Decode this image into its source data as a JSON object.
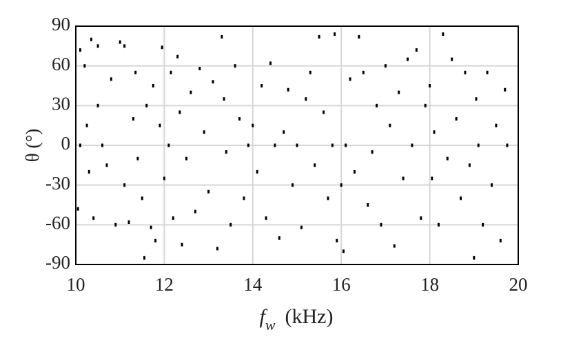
{
  "chart_data": {
    "type": "scatter",
    "ylabel": "θ (°)",
    "xlabel": {
      "main": "f",
      "sub": "w",
      "unit": "(kHz)"
    },
    "xlim": [
      10,
      20
    ],
    "xticks": [
      10,
      12,
      14,
      16,
      18,
      20
    ],
    "ylim": [
      -90,
      90
    ],
    "yticks": [
      -90,
      -60,
      -30,
      0,
      30,
      60,
      90
    ],
    "grid": true,
    "color": "#000000",
    "x": [
      10.05,
      10.1,
      10.1,
      10.2,
      10.25,
      10.3,
      10.35,
      10.4,
      10.5,
      10.5,
      10.6,
      10.7,
      10.8,
      10.9,
      11.0,
      11.1,
      11.1,
      11.2,
      11.3,
      11.35,
      11.4,
      11.5,
      11.55,
      11.6,
      11.7,
      11.75,
      11.8,
      11.9,
      11.95,
      12.0,
      12.1,
      12.15,
      12.2,
      12.3,
      12.35,
      12.4,
      12.5,
      12.6,
      12.7,
      12.8,
      12.9,
      13.0,
      13.1,
      13.2,
      13.3,
      13.35,
      13.4,
      13.5,
      13.6,
      13.7,
      13.8,
      13.9,
      14.0,
      14.1,
      14.2,
      14.3,
      14.4,
      14.5,
      14.6,
      14.7,
      14.8,
      14.9,
      15.0,
      15.1,
      15.2,
      15.3,
      15.4,
      15.5,
      15.6,
      15.7,
      15.8,
      15.85,
      15.9,
      16.0,
      16.05,
      16.1,
      16.2,
      16.3,
      16.4,
      16.5,
      16.6,
      16.7,
      16.8,
      16.9,
      17.0,
      17.1,
      17.2,
      17.3,
      17.4,
      17.5,
      17.6,
      17.7,
      17.8,
      17.9,
      18.0,
      18.05,
      18.1,
      18.2,
      18.3,
      18.4,
      18.5,
      18.6,
      18.7,
      18.8,
      18.9,
      19.0,
      19.05,
      19.1,
      19.2,
      19.3,
      19.4,
      19.5,
      19.6,
      19.7,
      19.75
    ],
    "values": [
      -48,
      72,
      0,
      60,
      15,
      -20,
      80,
      -55,
      75,
      30,
      0,
      -15,
      50,
      -60,
      78,
      75,
      -30,
      -58,
      20,
      55,
      -10,
      -40,
      -85,
      30,
      -62,
      45,
      -72,
      15,
      74,
      -25,
      0,
      55,
      -55,
      67,
      25,
      -75,
      -10,
      40,
      -50,
      58,
      10,
      -35,
      48,
      -78,
      82,
      35,
      -5,
      -60,
      60,
      20,
      -40,
      0,
      15,
      -20,
      45,
      -55,
      62,
      0,
      -70,
      10,
      42,
      -30,
      0,
      -62,
      35,
      55,
      -15,
      82,
      25,
      -40,
      0,
      84,
      -72,
      -30,
      -80,
      0,
      50,
      -20,
      82,
      55,
      -45,
      -5,
      30,
      -60,
      60,
      15,
      -76,
      40,
      -25,
      65,
      0,
      72,
      -55,
      30,
      45,
      -25,
      10,
      -60,
      84,
      -10,
      65,
      20,
      -40,
      55,
      -15,
      -85,
      35,
      0,
      -60,
      55,
      -30,
      15,
      -72,
      42,
      0
    ]
  }
}
